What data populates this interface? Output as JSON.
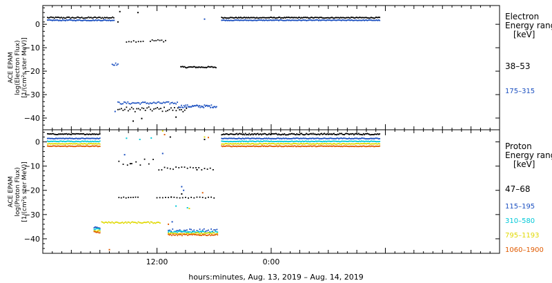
{
  "chart_data": [
    {
      "type": "scatter",
      "ylabel_lines": [
        "ACE EPAM",
        "log(Electron Flux)",
        "[1/(cm²s ster MeV)]"
      ],
      "legend_title": [
        "Electron",
        "Energy ranges",
        "[keV]"
      ],
      "ylim": [
        -45,
        8
      ],
      "yticks": [
        0,
        -10,
        -20,
        -30,
        -40
      ],
      "ytick_labels": [
        "0",
        "−10",
        "−20",
        "−30",
        "−40"
      ],
      "xlim_hours": [
        0,
        48
      ],
      "series": [
        {
          "name": "38–53",
          "color": "#000000",
          "segments": [
            {
              "x0": 0.5,
              "x1": 7.5,
              "y": 2.8,
              "jitter": 0.3,
              "step": 0.12
            },
            {
              "x0": 8.8,
              "x1": 10.6,
              "y": -7.2,
              "jitter": 0.4,
              "step": 0.25
            },
            {
              "x0": 11.3,
              "x1": 13.0,
              "y": -7.0,
              "jitter": 0.5,
              "step": 0.2
            },
            {
              "x0": 7.9,
              "x1": 15.2,
              "y": -36.3,
              "jitter": 1.0,
              "step": 0.18
            },
            {
              "x0": 14.5,
              "x1": 18.3,
              "y": -18.3,
              "jitter": 0.3,
              "step": 0.1
            },
            {
              "x0": 18.8,
              "x1": 35.5,
              "y": 2.8,
              "jitter": 0.2,
              "step": 0.1
            }
          ],
          "points": [
            {
              "x": 8.1,
              "y": 5.4
            },
            {
              "x": 10.0,
              "y": 5.0
            },
            {
              "x": 7.9,
              "y": 1.0
            },
            {
              "x": 10.4,
              "y": -40.2
            },
            {
              "x": 14.0,
              "y": -39.6
            },
            {
              "x": 9.5,
              "y": -41.3
            }
          ]
        },
        {
          "name": "175–315",
          "color": "#1a4fc0",
          "segments": [
            {
              "x0": 0.5,
              "x1": 7.5,
              "y": 1.7,
              "jitter": 0.2,
              "step": 0.1
            },
            {
              "x0": 7.3,
              "x1": 8.0,
              "y": -17.0,
              "jitter": 0.5,
              "step": 0.12
            },
            {
              "x0": 7.9,
              "x1": 14.2,
              "y": -33.6,
              "jitter": 0.5,
              "step": 0.13
            },
            {
              "x0": 14.3,
              "x1": 18.3,
              "y": -35.0,
              "jitter": 0.6,
              "step": 0.09
            },
            {
              "x0": 18.8,
              "x1": 35.5,
              "y": 1.7,
              "jitter": 0.15,
              "step": 0.1
            }
          ],
          "points": [
            {
              "x": 7.6,
              "y": -37.2
            },
            {
              "x": 17.0,
              "y": 2.2
            }
          ]
        }
      ]
    },
    {
      "type": "scatter",
      "ylabel_lines": [
        "ACE EPAM",
        "log(Proton Flux)",
        "[1/(cm²s ster MeV)]"
      ],
      "legend_title": [
        "Proton",
        "Energy ranges",
        "[keV]"
      ],
      "ylim": [
        -46,
        5
      ],
      "yticks": [
        0,
        -10,
        -20,
        -30,
        -40
      ],
      "ytick_labels": [
        "0",
        "−10",
        "−20",
        "−30",
        "−40"
      ],
      "xlim_hours": [
        0,
        48
      ],
      "xticks_hours": [
        12,
        24
      ],
      "xtick_labels": [
        "12:00",
        "0:00"
      ],
      "xlabel": "hours:minutes, Aug. 13, 2019 – Aug. 14, 2019",
      "series": [
        {
          "name": "47–68",
          "color": "#000000",
          "segments": [
            {
              "x0": 0.5,
              "x1": 6.0,
              "y": 3.2,
              "jitter": 0.2,
              "step": 0.1
            },
            {
              "x0": 18.8,
              "x1": 35.5,
              "y": 3.2,
              "jitter": 0.3,
              "step": 0.1
            },
            {
              "x0": 8.0,
              "x1": 12.0,
              "y": -8.3,
              "jitter": 1.5,
              "step": 0.45
            },
            {
              "x0": 12.2,
              "x1": 18.2,
              "y": -11.0,
              "jitter": 0.6,
              "step": 0.3
            },
            {
              "x0": 8.0,
              "x1": 10.0,
              "y": -23.0,
              "jitter": 0.2,
              "step": 0.25
            },
            {
              "x0": 12.0,
              "x1": 18.2,
              "y": -23.0,
              "jitter": 0.2,
              "step": 0.3
            }
          ],
          "points": [
            {
              "x": 13.5,
              "y": -22.8
            },
            {
              "x": 14.6,
              "y": -21.5
            },
            {
              "x": 9.2,
              "y": -9.0
            },
            {
              "x": 13.4,
              "y": 2.0
            },
            {
              "x": 17.0,
              "y": 1.0
            },
            {
              "x": 16.2,
              "y": -11.5
            }
          ]
        },
        {
          "name": "115–195",
          "color": "#1a4fc0",
          "segments": [
            {
              "x0": 0.5,
              "x1": 6.0,
              "y": 1.4,
              "jitter": 0.15,
              "step": 0.1
            },
            {
              "x0": 18.8,
              "x1": 35.5,
              "y": 1.4,
              "jitter": 0.15,
              "step": 0.1
            },
            {
              "x0": 5.4,
              "x1": 6.0,
              "y": -35.4,
              "jitter": 0.3,
              "step": 0.1
            },
            {
              "x0": 13.2,
              "x1": 18.4,
              "y": -36.6,
              "jitter": 0.7,
              "step": 0.15
            }
          ],
          "points": [
            {
              "x": 14.6,
              "y": -18.5
            },
            {
              "x": 14.8,
              "y": -20.0
            },
            {
              "x": 13.6,
              "y": -33.0
            },
            {
              "x": 8.6,
              "y": -5.3
            },
            {
              "x": 12.6,
              "y": -4.8
            }
          ]
        },
        {
          "name": "310–580",
          "color": "#00c8d8",
          "segments": [
            {
              "x0": 0.5,
              "x1": 6.0,
              "y": 0.2,
              "jitter": 0.15,
              "step": 0.1
            },
            {
              "x0": 18.8,
              "x1": 35.5,
              "y": 0.2,
              "jitter": 0.15,
              "step": 0.1
            },
            {
              "x0": 5.4,
              "x1": 6.0,
              "y": -36.0,
              "jitter": 0.3,
              "step": 0.1
            },
            {
              "x0": 13.2,
              "x1": 18.4,
              "y": -37.2,
              "jitter": 0.4,
              "step": 0.12
            }
          ],
          "points": [
            {
              "x": 8.8,
              "y": 1.5
            },
            {
              "x": 10.2,
              "y": 1.0
            },
            {
              "x": 11.4,
              "y": 1.6
            },
            {
              "x": 14.0,
              "y": -26.5
            },
            {
              "x": 15.2,
              "y": -27.2
            }
          ]
        },
        {
          "name": "795–1193",
          "color": "#e0d800",
          "segments": [
            {
              "x0": 0.5,
              "x1": 6.0,
              "y": -0.8,
              "jitter": 0.15,
              "step": 0.1
            },
            {
              "x0": 18.8,
              "x1": 35.5,
              "y": -0.8,
              "jitter": 0.15,
              "step": 0.1
            },
            {
              "x0": 6.2,
              "x1": 12.4,
              "y": -33.3,
              "jitter": 0.3,
              "step": 0.12
            },
            {
              "x0": 5.4,
              "x1": 6.0,
              "y": -36.7,
              "jitter": 0.3,
              "step": 0.1
            },
            {
              "x0": 13.2,
              "x1": 18.4,
              "y": -37.8,
              "jitter": 0.3,
              "step": 0.12
            }
          ],
          "points": [
            {
              "x": 12.6,
              "y": 4.5
            },
            {
              "x": 17.0,
              "y": 2.0
            },
            {
              "x": 15.4,
              "y": -27.5
            }
          ]
        },
        {
          "name": "1060–1900",
          "color": "#e05a00",
          "segments": [
            {
              "x0": 0.5,
              "x1": 6.0,
              "y": -1.8,
              "jitter": 0.15,
              "step": 0.1
            },
            {
              "x0": 18.8,
              "x1": 35.5,
              "y": -1.8,
              "jitter": 0.15,
              "step": 0.1
            },
            {
              "x0": 5.4,
              "x1": 6.0,
              "y": -37.3,
              "jitter": 0.3,
              "step": 0.1
            },
            {
              "x0": 13.2,
              "x1": 18.4,
              "y": -38.4,
              "jitter": 0.3,
              "step": 0.12
            }
          ],
          "points": [
            {
              "x": 7.0,
              "y": -44.5
            },
            {
              "x": 12.8,
              "y": 3.0
            },
            {
              "x": 13.2,
              "y": -34.0
            },
            {
              "x": 16.8,
              "y": -21.0
            },
            {
              "x": 17.4,
              "y": 1.8
            }
          ]
        }
      ]
    }
  ]
}
